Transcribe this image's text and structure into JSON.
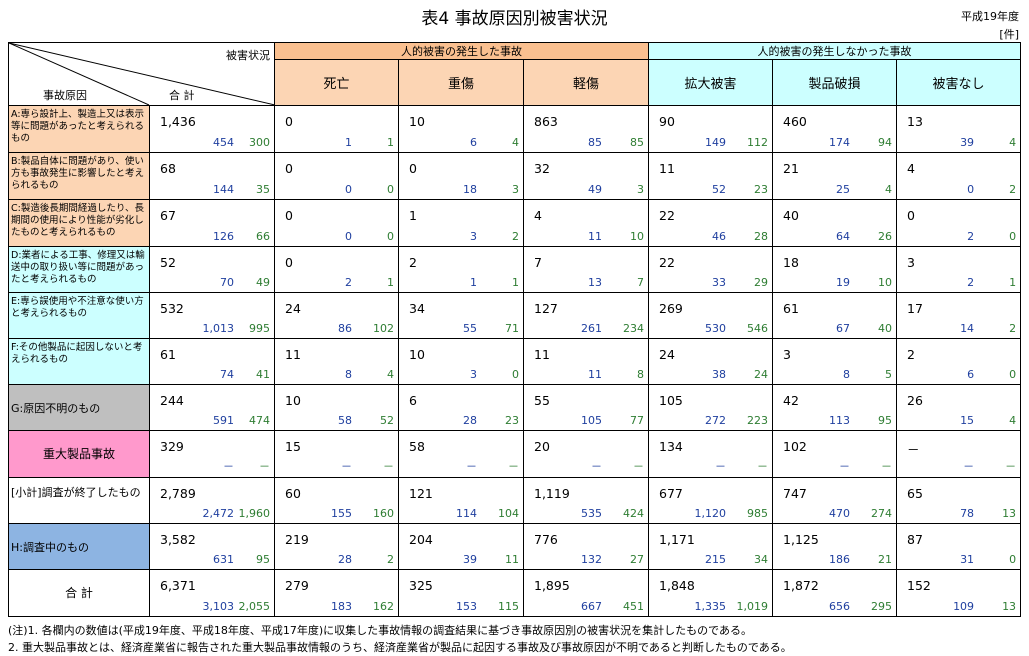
{
  "title": "表4  事故原因別被害状況",
  "year_label": "平成19年度",
  "unit_label": "[件]",
  "header": {
    "status_label": "被害状況",
    "cause_label": "事故原因",
    "total_label": "合  計",
    "group_human": "人的被害の発生した事故",
    "group_nohuman": "人的被害の発生しなかった事故",
    "columns": [
      "死亡",
      "重傷",
      "軽傷",
      "拡大被害",
      "製品破損",
      "被害なし"
    ]
  },
  "colors": {
    "cause_a_c": "#fcd5b4",
    "cause_d_f": "#ccffff",
    "cause_g": "#bfbfbf",
    "cause_serious": "#ff99cc",
    "cause_h": "#8db4e2",
    "prev1_value": "#1f3f9f",
    "prev2_value": "#2e7d32"
  },
  "rows": [
    {
      "cause": "A:専ら設計上、製造上又は表示等に問題があったと考えられるもの",
      "style": "a",
      "total": [
        "1,436",
        "454",
        "300"
      ],
      "cells": [
        [
          "0",
          "1",
          "1"
        ],
        [
          "10",
          "6",
          "4"
        ],
        [
          "863",
          "85",
          "85"
        ],
        [
          "90",
          "149",
          "112"
        ],
        [
          "460",
          "174",
          "94"
        ],
        [
          "13",
          "39",
          "4"
        ]
      ]
    },
    {
      "cause": "B:製品自体に問題があり、使い方も事故発生に影響したと考えられるもの",
      "style": "a",
      "total": [
        "68",
        "144",
        "35"
      ],
      "cells": [
        [
          "0",
          "0",
          "0"
        ],
        [
          "0",
          "18",
          "3"
        ],
        [
          "32",
          "49",
          "3"
        ],
        [
          "11",
          "52",
          "23"
        ],
        [
          "21",
          "25",
          "4"
        ],
        [
          "4",
          "0",
          "2"
        ]
      ]
    },
    {
      "cause": "C:製造後長期間経過したり、長期間の使用により性能が劣化したものと考えられるもの",
      "style": "a",
      "total": [
        "67",
        "126",
        "66"
      ],
      "cells": [
        [
          "0",
          "0",
          "0"
        ],
        [
          "1",
          "3",
          "2"
        ],
        [
          "4",
          "11",
          "10"
        ],
        [
          "22",
          "46",
          "28"
        ],
        [
          "40",
          "64",
          "26"
        ],
        [
          "0",
          "2",
          "0"
        ]
      ]
    },
    {
      "cause": "D:業者による工事、修理又は輸送中の取り扱い等に問題があったと考えられるもの",
      "style": "d",
      "total": [
        "52",
        "70",
        "49"
      ],
      "cells": [
        [
          "0",
          "2",
          "1"
        ],
        [
          "2",
          "1",
          "1"
        ],
        [
          "7",
          "13",
          "7"
        ],
        [
          "22",
          "33",
          "29"
        ],
        [
          "18",
          "19",
          "10"
        ],
        [
          "3",
          "2",
          "1"
        ]
      ]
    },
    {
      "cause": "E:専ら誤使用や不注意な使い方と考えられるもの",
      "style": "d",
      "total": [
        "532",
        "1,013",
        "995"
      ],
      "cells": [
        [
          "24",
          "86",
          "102"
        ],
        [
          "34",
          "55",
          "71"
        ],
        [
          "127",
          "261",
          "234"
        ],
        [
          "269",
          "530",
          "546"
        ],
        [
          "61",
          "67",
          "40"
        ],
        [
          "17",
          "14",
          "2"
        ]
      ]
    },
    {
      "cause": "F:その他製品に起因しないと考えられるもの",
      "style": "d",
      "total": [
        "61",
        "74",
        "41"
      ],
      "cells": [
        [
          "11",
          "8",
          "4"
        ],
        [
          "10",
          "3",
          "0"
        ],
        [
          "11",
          "11",
          "8"
        ],
        [
          "24",
          "38",
          "24"
        ],
        [
          "3",
          "8",
          "5"
        ],
        [
          "2",
          "6",
          "0"
        ]
      ]
    },
    {
      "cause": "G:原因不明のもの",
      "style": "g",
      "total": [
        "244",
        "591",
        "474"
      ],
      "cells": [
        [
          "10",
          "58",
          "52"
        ],
        [
          "6",
          "28",
          "23"
        ],
        [
          "55",
          "105",
          "77"
        ],
        [
          "105",
          "272",
          "223"
        ],
        [
          "42",
          "113",
          "95"
        ],
        [
          "26",
          "15",
          "4"
        ]
      ]
    },
    {
      "cause": "重大製品事故",
      "style": "serious",
      "total": [
        "329",
        "－",
        "－"
      ],
      "cells": [
        [
          "15",
          "－",
          "－"
        ],
        [
          "58",
          "－",
          "－"
        ],
        [
          "20",
          "－",
          "－"
        ],
        [
          "134",
          "－",
          "－"
        ],
        [
          "102",
          "－",
          "－"
        ],
        [
          "－",
          "－",
          "－"
        ]
      ]
    },
    {
      "cause": "[小計]調査が終了したもの",
      "style": "plain",
      "total": [
        "2,789",
        "2,472",
        "1,960"
      ],
      "cells": [
        [
          "60",
          "155",
          "160"
        ],
        [
          "121",
          "114",
          "104"
        ],
        [
          "1,119",
          "535",
          "424"
        ],
        [
          "677",
          "1,120",
          "985"
        ],
        [
          "747",
          "470",
          "274"
        ],
        [
          "65",
          "78",
          "13"
        ]
      ]
    },
    {
      "cause": "H:調査中のもの",
      "style": "h",
      "total": [
        "3,582",
        "631",
        "95"
      ],
      "cells": [
        [
          "219",
          "28",
          "2"
        ],
        [
          "204",
          "39",
          "11"
        ],
        [
          "776",
          "132",
          "27"
        ],
        [
          "1,171",
          "215",
          "34"
        ],
        [
          "1,125",
          "186",
          "21"
        ],
        [
          "87",
          "31",
          "0"
        ]
      ]
    },
    {
      "cause": "合    計",
      "style": "grand",
      "total": [
        "6,371",
        "3,103",
        "2,055"
      ],
      "cells": [
        [
          "279",
          "183",
          "162"
        ],
        [
          "325",
          "153",
          "115"
        ],
        [
          "1,895",
          "667",
          "451"
        ],
        [
          "1,848",
          "1,335",
          "1,019"
        ],
        [
          "1,872",
          "656",
          "295"
        ],
        [
          "152",
          "109",
          "13"
        ]
      ]
    }
  ],
  "notes": [
    "(注)1. 各欄内の数値は(平成19年度、平成18年度、平成17年度)に収集した事故情報の調査結果に基づき事故原因別の被害状況を集計したものである。",
    "     2. 重大製品事故とは、経済産業省に報告された重大製品事故情報のうち、経済産業省が製品に起因する事故及び事故原因が不明であると判断したものである。"
  ]
}
